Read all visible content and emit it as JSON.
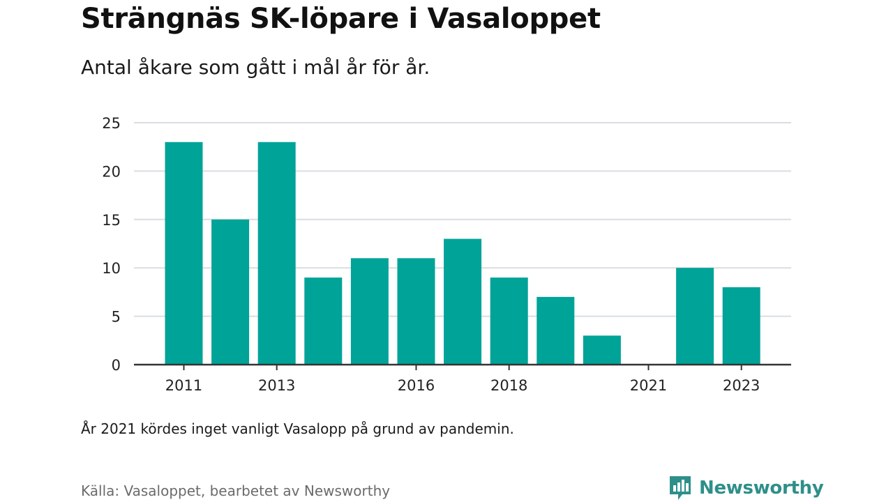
{
  "title": "Strängnäs SK-löpare i Vasaloppet",
  "subtitle": "Antal åkare som gått i mål år för år.",
  "note": "År 2021 kördes inget vanligt Vasalopp på grund av pandemin.",
  "source": "Källa: Vasaloppet, bearbetet av Newsworthy",
  "logo": {
    "name": "Newsworthy",
    "icon": "newsworthy-bar-chart-icon"
  },
  "colors": {
    "bar": "#00a398",
    "grid": "#d9dde2",
    "axis": "#333333",
    "brand": "#2e8f8a"
  },
  "chart_data": {
    "type": "bar",
    "categories": [
      "2011",
      "2012",
      "2013",
      "2014",
      "2015",
      "2016",
      "2017",
      "2018",
      "2019",
      "2020",
      "2021",
      "2022",
      "2023"
    ],
    "values": [
      23,
      15,
      23,
      9,
      11,
      11,
      13,
      9,
      7,
      3,
      0,
      10,
      8
    ],
    "x_tick_labels": [
      "2011",
      "2013",
      "2016",
      "2018",
      "2021",
      "2023"
    ],
    "y_ticks": [
      0,
      5,
      10,
      15,
      20,
      25
    ],
    "ylim": [
      0,
      25
    ],
    "xlabel": "",
    "ylabel": "",
    "grid": true,
    "legend": false
  }
}
